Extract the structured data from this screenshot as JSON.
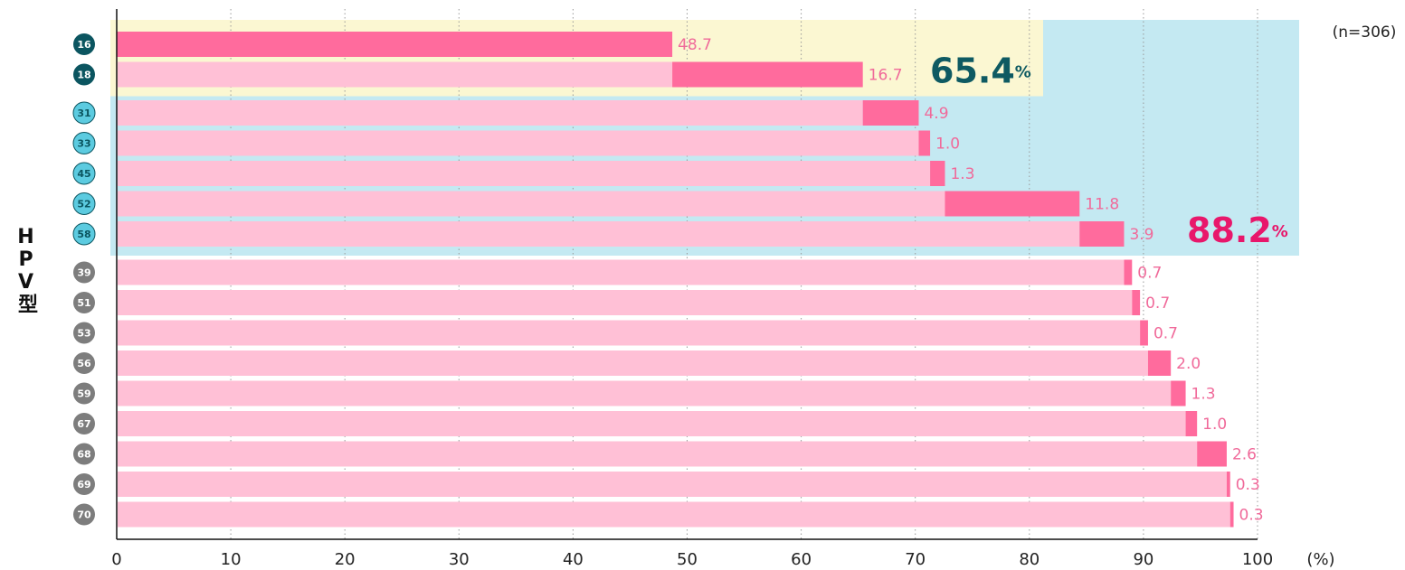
{
  "chart_data": {
    "type": "waterfall_bar",
    "categories": [
      "16",
      "18",
      "31",
      "33",
      "45",
      "52",
      "58",
      "39",
      "51",
      "53",
      "56",
      "59",
      "67",
      "68",
      "69",
      "70"
    ],
    "values": [
      48.7,
      16.7,
      4.9,
      1.0,
      1.3,
      11.8,
      3.9,
      0.7,
      0.7,
      0.7,
      2.0,
      1.3,
      1.0,
      2.6,
      0.3,
      0.3
    ],
    "value_labels": [
      "48.7",
      "16.7",
      "4.9",
      "1.0",
      "1.3",
      "11.8",
      "3.9",
      "0.7",
      "0.7",
      "0.7",
      "2.0",
      "1.3",
      "1.0",
      "2.6",
      "0.3",
      "0.3"
    ],
    "segment_color": "#ff6b9d",
    "base_color": "#ffc0d6",
    "label_color": "#f06a9a",
    "groups": [
      {
        "first": 0,
        "last": 1,
        "marker_color": "#0b5560",
        "marker_text": "#ffffff",
        "band_color": "#fbf7d2",
        "total": "65.4",
        "unit": "%",
        "total_color": "#0e5a62"
      },
      {
        "first": 2,
        "last": 6,
        "marker_color": "#5ccbe0",
        "marker_text": "#0b5560",
        "band_color": "#c4e9f2",
        "total": "88.2",
        "unit": "%",
        "total_color": "#e8176b"
      },
      {
        "first": 7,
        "last": 15,
        "marker_color": "#7d7d7d",
        "marker_text": "#ffffff"
      }
    ],
    "y_label": "HPV型",
    "x_unit": "(%)",
    "note": "(n=306)",
    "xlim": [
      0,
      100
    ],
    "xticks": [
      0,
      10,
      20,
      30,
      40,
      50,
      60,
      70,
      80,
      90,
      100
    ],
    "grid": true
  }
}
